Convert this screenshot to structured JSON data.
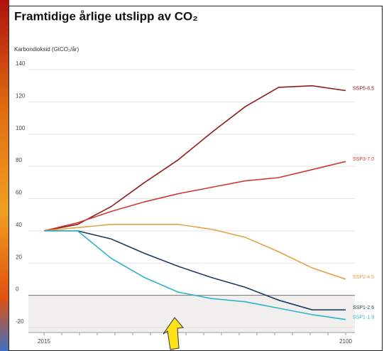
{
  "chart_data": {
    "type": "line",
    "title": "Framtidige årlige utslipp av CO₂",
    "y_label": "Karbondioksid (GtCO₂/år)",
    "categories": [
      "2015",
      null,
      null,
      null,
      null,
      null,
      null,
      null,
      null,
      "2100"
    ],
    "series": [
      {
        "name": "SSP5-8.5",
        "color": "#8e1c1c",
        "values": [
          40,
          44,
          55,
          70,
          84,
          101,
          117,
          129,
          130,
          127
        ]
      },
      {
        "name": "SSP3-7.0",
        "color": "#cc3a33",
        "values": [
          40,
          45,
          52,
          58,
          63,
          67,
          71,
          73,
          78,
          83
        ]
      },
      {
        "name": "SSP2-4.5",
        "color": "#e3a246",
        "values": [
          40,
          42,
          44,
          44,
          44,
          41,
          36,
          27,
          17,
          10
        ]
      },
      {
        "name": "SSP1-2.6",
        "color": "#1f3a5c",
        "values": [
          40,
          40,
          35,
          26,
          18,
          11,
          5,
          -3,
          -9,
          -9
        ]
      },
      {
        "name": "SSP1-1.9",
        "color": "#2fb3c9",
        "values": [
          40,
          40,
          23,
          11,
          2,
          -2,
          -4,
          -8,
          -12,
          -15
        ]
      }
    ],
    "ylim": [
      -20,
      140
    ],
    "yticks": [
      -20,
      0,
      20,
      40,
      60,
      80,
      100,
      120,
      140
    ],
    "grid": true
  }
}
